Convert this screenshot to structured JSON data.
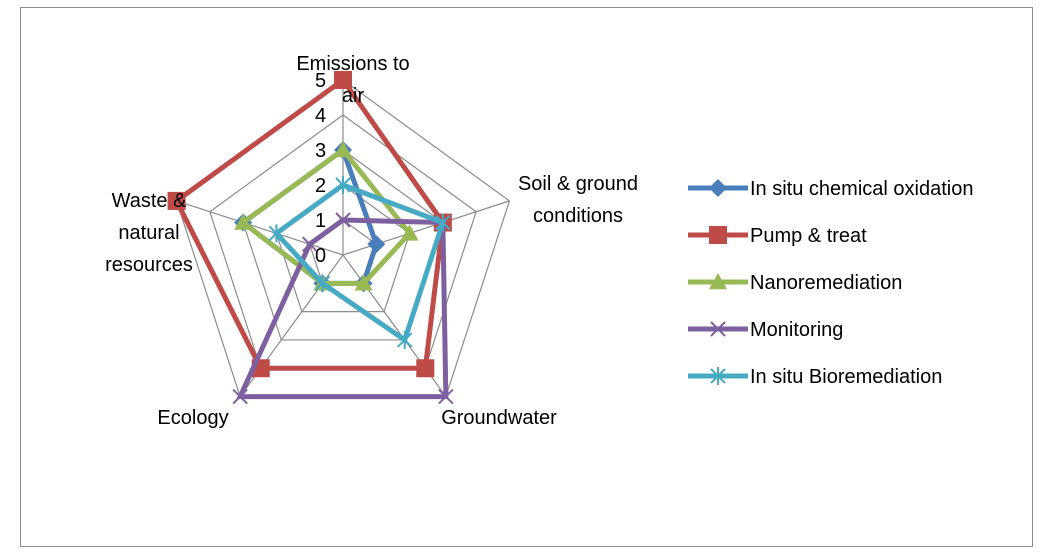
{
  "chart_data": {
    "type": "radar",
    "title": "",
    "categories": [
      [
        "Emissions to",
        "air"
      ],
      [
        "Soil & ground",
        "conditions"
      ],
      [
        "Groundwater"
      ],
      [
        "Ecology"
      ],
      [
        "Waste &",
        "natural",
        "resources"
      ]
    ],
    "category_names": [
      "Emissions to air",
      "Soil & ground conditions",
      "Groundwater",
      "Ecology",
      "Waste & natural resources"
    ],
    "rlim": [
      0,
      5
    ],
    "ticks": [
      "0",
      "1",
      "2",
      "3",
      "4",
      "5"
    ],
    "grid": true,
    "legend_position": "right",
    "series": [
      {
        "name": "In situ chemical oxidation",
        "values": [
          3,
          1,
          1,
          1,
          3
        ],
        "color": "#4a7ebb",
        "marker": "diamond"
      },
      {
        "name": "Pump & treat",
        "values": [
          5,
          3,
          4,
          4,
          5
        ],
        "color": "#be4b48",
        "marker": "square"
      },
      {
        "name": "Nanoremediation",
        "values": [
          3,
          2,
          1,
          1,
          3
        ],
        "color": "#98b954",
        "marker": "triangle"
      },
      {
        "name": "Monitoring",
        "values": [
          1,
          3,
          5,
          5,
          1
        ],
        "color": "#7d60a0",
        "marker": "x"
      },
      {
        "name": "In situ Bioremediation",
        "values": [
          2,
          3,
          3,
          1,
          2
        ],
        "color": "#46aac5",
        "marker": "star"
      }
    ]
  }
}
